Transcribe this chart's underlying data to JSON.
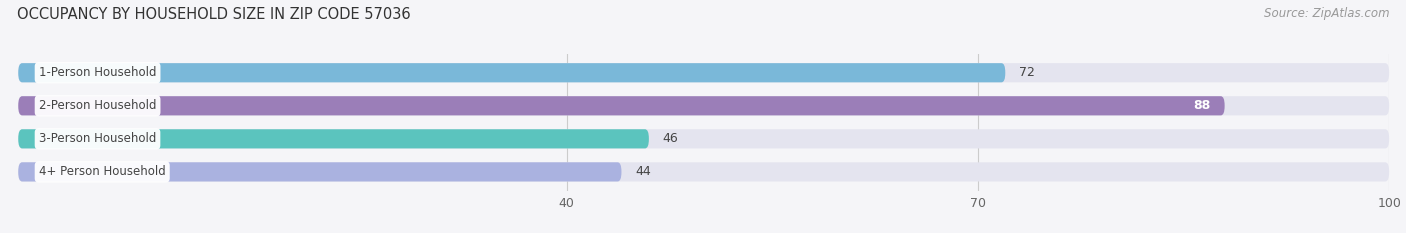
{
  "title": "OCCUPANCY BY HOUSEHOLD SIZE IN ZIP CODE 57036",
  "source": "Source: ZipAtlas.com",
  "categories": [
    "1-Person Household",
    "2-Person Household",
    "3-Person Household",
    "4+ Person Household"
  ],
  "values": [
    72,
    88,
    46,
    44
  ],
  "bar_colors": [
    "#7ab8d9",
    "#9b7eb8",
    "#5bc4be",
    "#aab2e0"
  ],
  "bar_bg_color": "#e4e4ef",
  "xlim": [
    0,
    100
  ],
  "xticks": [
    40,
    70,
    100
  ],
  "label_colors": [
    "#333333",
    "#ffffff",
    "#333333",
    "#333333"
  ],
  "title_fontsize": 10.5,
  "source_fontsize": 8.5,
  "tick_fontsize": 9,
  "bar_label_fontsize": 9,
  "category_fontsize": 8.5,
  "bar_height": 0.58,
  "background_color": "#f5f5f8"
}
